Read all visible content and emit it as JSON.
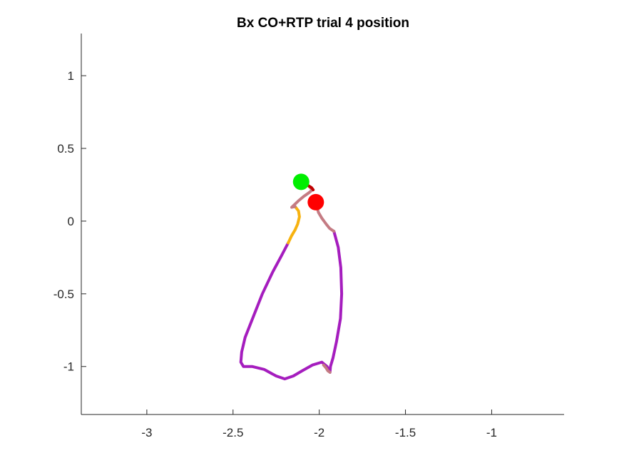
{
  "chart_data": {
    "type": "line",
    "title": "Bx  CO+RTP trial 4 position",
    "xlabel": "",
    "ylabel": "",
    "xlim": [
      -3.38,
      -0.58
    ],
    "ylim": [
      -1.33,
      1.29
    ],
    "xticks": [
      -3,
      -2.5,
      -2,
      -1.5,
      -1
    ],
    "xtick_labels": [
      "-3",
      "-2.5",
      "-2",
      "-1.5",
      "-1"
    ],
    "yticks": [
      1,
      0.5,
      0,
      -0.5,
      -1
    ],
    "ytick_labels": [
      "1",
      "0.5",
      "0",
      "-0.5",
      "-1"
    ],
    "grid": false,
    "box": false,
    "series": [
      {
        "color": "#a51dbe",
        "points": [
          [
            -1.915,
            -0.07
          ],
          [
            -1.89,
            -0.18
          ],
          [
            -1.875,
            -0.32
          ],
          [
            -1.87,
            -0.5
          ],
          [
            -1.877,
            -0.67
          ],
          [
            -1.9,
            -0.83
          ],
          [
            -1.92,
            -0.94
          ],
          [
            -1.935,
            -1.0
          ],
          [
            -1.938,
            -1.04
          ],
          [
            -1.955,
            -1.0
          ],
          [
            -1.985,
            -0.97
          ],
          [
            -2.04,
            -0.99
          ],
          [
            -2.1,
            -1.03
          ],
          [
            -2.15,
            -1.065
          ],
          [
            -2.2,
            -1.085
          ],
          [
            -2.25,
            -1.065
          ],
          [
            -2.32,
            -1.02
          ],
          [
            -2.39,
            -1.0
          ],
          [
            -2.44,
            -1.0
          ],
          [
            -2.455,
            -0.97
          ],
          [
            -2.45,
            -0.9
          ],
          [
            -2.43,
            -0.8
          ],
          [
            -2.38,
            -0.65
          ],
          [
            -2.33,
            -0.5
          ],
          [
            -2.27,
            -0.35
          ],
          [
            -2.22,
            -0.24
          ],
          [
            -2.18,
            -0.15
          ]
        ]
      },
      {
        "color": "#c47b83",
        "points": [
          [
            -1.938,
            -1.04
          ],
          [
            -1.95,
            -1.03
          ],
          [
            -1.96,
            -1.01
          ],
          [
            -1.975,
            -0.99
          ]
        ]
      },
      {
        "color": "#c47b83",
        "points": [
          [
            -2.02,
            0.13
          ],
          [
            -2.005,
            0.06
          ],
          [
            -1.985,
            0.02
          ],
          [
            -1.96,
            -0.02
          ],
          [
            -1.94,
            -0.05
          ],
          [
            -1.915,
            -0.07
          ]
        ]
      },
      {
        "color": "#f7b20f",
        "points": [
          [
            -2.18,
            -0.15
          ],
          [
            -2.16,
            -0.1
          ],
          [
            -2.14,
            -0.06
          ],
          [
            -2.125,
            -0.02
          ],
          [
            -2.115,
            0.03
          ],
          [
            -2.12,
            0.07
          ],
          [
            -2.14,
            0.1
          ]
        ]
      },
      {
        "color": "#c47b83",
        "points": [
          [
            -2.14,
            0.1
          ],
          [
            -2.16,
            0.095
          ],
          [
            -2.12,
            0.14
          ],
          [
            -2.09,
            0.17
          ],
          [
            -2.06,
            0.195
          ],
          [
            -2.04,
            0.215
          ],
          [
            -2.06,
            0.24
          ],
          [
            -2.085,
            0.26
          ]
        ]
      },
      {
        "color": "#c00000",
        "points": [
          [
            -2.085,
            0.26
          ],
          [
            -2.065,
            0.245
          ],
          [
            -2.045,
            0.23
          ],
          [
            -2.035,
            0.215
          ]
        ]
      }
    ],
    "markers": [
      {
        "label": "start",
        "color": "#00ee00",
        "x": -2.105,
        "y": 0.27
      },
      {
        "label": "end",
        "color": "#ff0000",
        "x": -2.02,
        "y": 0.13
      }
    ]
  }
}
